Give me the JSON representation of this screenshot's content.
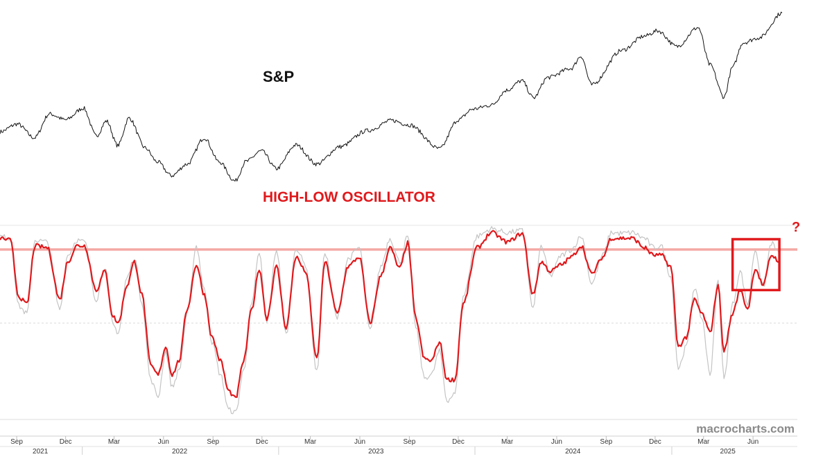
{
  "chart_data": {
    "type": "line",
    "watermark": "macrocharts.com",
    "colors": {
      "price": "#111111",
      "oscillator": "#e0191c",
      "oscillator_raw": "#c4c4c4",
      "threshold": "#f4a8a4",
      "highlight_box": "#e0191c"
    },
    "x_axis": {
      "range": [
        "2021-08-01",
        "2025-07-25"
      ],
      "month_ticks": [
        {
          "date": "2021-09-01",
          "label": "Sep"
        },
        {
          "date": "2021-12-01",
          "label": "Dec"
        },
        {
          "date": "2022-03-01",
          "label": "Mar"
        },
        {
          "date": "2022-06-01",
          "label": "Jun"
        },
        {
          "date": "2022-09-01",
          "label": "Sep"
        },
        {
          "date": "2022-12-01",
          "label": "Dec"
        },
        {
          "date": "2023-03-01",
          "label": "Mar"
        },
        {
          "date": "2023-06-01",
          "label": "Jun"
        },
        {
          "date": "2023-09-01",
          "label": "Sep"
        },
        {
          "date": "2023-12-01",
          "label": "Dec"
        },
        {
          "date": "2024-03-01",
          "label": "Mar"
        },
        {
          "date": "2024-06-01",
          "label": "Jun"
        },
        {
          "date": "2024-09-01",
          "label": "Sep"
        },
        {
          "date": "2024-12-01",
          "label": "Dec"
        },
        {
          "date": "2025-03-01",
          "label": "Mar"
        },
        {
          "date": "2025-06-01",
          "label": "Jun"
        }
      ],
      "year_ticks": [
        {
          "date": "2021-10-15",
          "label": "2021"
        },
        {
          "date": "2022-07-01",
          "label": "2022"
        },
        {
          "date": "2023-07-01",
          "label": "2023"
        },
        {
          "date": "2024-07-01",
          "label": "2024"
        },
        {
          "date": "2025-04-15",
          "label": "2025"
        }
      ]
    },
    "panels": [
      {
        "id": "sp",
        "label": "S&P",
        "y_range": [
          3450,
          6350
        ],
        "series": [
          {
            "name": "S&P",
            "x": [
              "2021-08-01",
              "2021-09-02",
              "2021-10-04",
              "2021-11-01",
              "2021-12-01",
              "2022-01-03",
              "2022-01-27",
              "2022-02-15",
              "2022-03-08",
              "2022-03-29",
              "2022-04-28",
              "2022-05-20",
              "2022-06-16",
              "2022-07-15",
              "2022-08-16",
              "2022-09-12",
              "2022-10-12",
              "2022-11-01",
              "2022-11-30",
              "2022-12-28",
              "2023-02-02",
              "2023-03-13",
              "2023-04-25",
              "2023-06-15",
              "2023-07-31",
              "2023-09-01",
              "2023-10-27",
              "2023-12-01",
              "2023-12-28",
              "2024-01-31",
              "2024-02-29",
              "2024-03-28",
              "2024-04-19",
              "2024-05-15",
              "2024-06-28",
              "2024-07-16",
              "2024-08-05",
              "2024-09-30",
              "2024-11-11",
              "2024-12-06",
              "2025-01-10",
              "2025-02-19",
              "2025-03-13",
              "2025-04-08",
              "2025-04-24",
              "2025-05-13",
              "2025-06-13",
              "2025-07-25"
            ],
            "y": [
              4400,
              4530,
              4300,
              4700,
              4600,
              4796,
              4330,
              4580,
              4170,
              4630,
              4130,
              3900,
              3666,
              3860,
              4300,
              3900,
              3577,
              3900,
              4080,
              3783,
              4180,
              3860,
              4150,
              4420,
              4590,
              4515,
              4117,
              4600,
              4780,
              4845,
              5096,
              5254,
              4967,
              5308,
              5460,
              5667,
              5186,
              5762,
              6001,
              6090,
              5827,
              6144,
              5520,
              4982,
              5480,
              5890,
              5976,
              6390
            ]
          }
        ]
      },
      {
        "id": "oscillator",
        "label": "HIGH-LOW OSCILLATOR",
        "annotation": "?",
        "y_range": [
          -1.0,
          1.0
        ],
        "threshold": 0.78,
        "midline": 0,
        "highlight": {
          "x": [
            "2025-04-24",
            "2025-07-20"
          ],
          "y": [
            0.35,
            0.89
          ]
        },
        "series": [
          {
            "name": "Oscillator (smoothed)",
            "x": [
              "2021-08-01",
              "2021-08-20",
              "2021-09-05",
              "2021-09-20",
              "2021-10-05",
              "2021-10-28",
              "2021-11-20",
              "2021-12-05",
              "2021-12-22",
              "2022-01-05",
              "2022-01-27",
              "2022-02-12",
              "2022-02-27",
              "2022-03-09",
              "2022-03-25",
              "2022-04-08",
              "2022-04-22",
              "2022-05-08",
              "2022-05-22",
              "2022-06-05",
              "2022-06-17",
              "2022-06-30",
              "2022-07-15",
              "2022-08-01",
              "2022-08-16",
              "2022-08-30",
              "2022-09-15",
              "2022-09-30",
              "2022-10-13",
              "2022-10-28",
              "2022-11-12",
              "2022-11-26",
              "2022-12-10",
              "2022-12-28",
              "2023-01-15",
              "2023-02-02",
              "2023-02-20",
              "2023-03-13",
              "2023-03-28",
              "2023-04-20",
              "2023-05-10",
              "2023-05-31",
              "2023-06-20",
              "2023-07-10",
              "2023-07-27",
              "2023-08-14",
              "2023-08-29",
              "2023-09-13",
              "2023-09-29",
              "2023-10-12",
              "2023-10-27",
              "2023-11-10",
              "2023-11-25",
              "2023-12-10",
              "2024-01-05",
              "2024-02-01",
              "2024-03-01",
              "2024-03-29",
              "2024-04-18",
              "2024-05-03",
              "2024-05-20",
              "2024-06-10",
              "2024-06-28",
              "2024-07-17",
              "2024-08-05",
              "2024-08-26",
              "2024-09-10",
              "2024-09-30",
              "2024-10-20",
              "2024-11-11",
              "2024-11-28",
              "2024-12-12",
              "2024-12-30",
              "2025-01-13",
              "2025-01-28",
              "2025-02-12",
              "2025-02-26",
              "2025-03-13",
              "2025-03-28",
              "2025-04-08",
              "2025-04-24",
              "2025-05-08",
              "2025-05-22",
              "2025-06-05",
              "2025-06-20",
              "2025-07-05",
              "2025-07-20"
            ],
            "values": [
              0.9,
              0.88,
              0.28,
              0.2,
              0.82,
              0.8,
              0.25,
              0.65,
              0.82,
              0.82,
              0.35,
              0.55,
              0.07,
              0.0,
              0.4,
              0.65,
              0.3,
              -0.45,
              -0.55,
              -0.25,
              -0.55,
              -0.4,
              0.15,
              0.62,
              0.3,
              -0.15,
              -0.4,
              -0.72,
              -0.8,
              -0.4,
              0.15,
              0.58,
              0.05,
              0.6,
              -0.05,
              0.7,
              0.55,
              -0.38,
              0.65,
              0.1,
              0.6,
              0.7,
              0.0,
              0.5,
              0.8,
              0.58,
              0.85,
              0.05,
              -0.38,
              -0.4,
              -0.2,
              -0.6,
              -0.6,
              0.2,
              0.8,
              0.96,
              0.86,
              0.95,
              0.3,
              0.65,
              0.55,
              0.62,
              0.7,
              0.82,
              0.52,
              0.7,
              0.9,
              0.9,
              0.9,
              0.8,
              0.72,
              0.72,
              0.6,
              -0.25,
              -0.15,
              0.25,
              0.1,
              -0.1,
              0.4,
              -0.3,
              0.1,
              0.35,
              0.15,
              0.58,
              0.4,
              0.72,
              0.66
            ]
          },
          {
            "name": "Oscillator (raw)",
            "x": [
              "2021-08-01",
              "2021-08-20",
              "2021-09-05",
              "2021-09-20",
              "2021-10-05",
              "2021-10-28",
              "2021-11-20",
              "2021-12-05",
              "2021-12-22",
              "2022-01-05",
              "2022-01-27",
              "2022-02-12",
              "2022-02-27",
              "2022-03-09",
              "2022-03-25",
              "2022-04-08",
              "2022-04-22",
              "2022-05-08",
              "2022-05-22",
              "2022-06-05",
              "2022-06-17",
              "2022-06-30",
              "2022-07-15",
              "2022-08-01",
              "2022-08-16",
              "2022-08-30",
              "2022-09-15",
              "2022-09-30",
              "2022-10-13",
              "2022-10-28",
              "2022-11-12",
              "2022-11-26",
              "2022-12-10",
              "2022-12-28",
              "2023-01-15",
              "2023-02-02",
              "2023-02-20",
              "2023-03-13",
              "2023-03-28",
              "2023-04-20",
              "2023-05-10",
              "2023-05-31",
              "2023-06-20",
              "2023-07-10",
              "2023-07-27",
              "2023-08-14",
              "2023-08-29",
              "2023-09-13",
              "2023-09-29",
              "2023-10-12",
              "2023-10-27",
              "2023-11-10",
              "2023-11-25",
              "2023-12-10",
              "2024-01-05",
              "2024-02-01",
              "2024-03-01",
              "2024-03-29",
              "2024-04-18",
              "2024-05-03",
              "2024-05-20",
              "2024-06-10",
              "2024-06-28",
              "2024-07-17",
              "2024-08-05",
              "2024-08-26",
              "2024-09-10",
              "2024-09-30",
              "2024-10-20",
              "2024-11-11",
              "2024-11-28",
              "2024-12-12",
              "2024-12-30",
              "2025-01-13",
              "2025-01-28",
              "2025-02-12",
              "2025-02-26",
              "2025-03-13",
              "2025-03-28",
              "2025-04-08",
              "2025-04-24",
              "2025-05-08",
              "2025-05-22",
              "2025-06-05",
              "2025-06-20",
              "2025-07-05",
              "2025-07-20"
            ],
            "values": [
              0.92,
              0.9,
              0.18,
              0.1,
              0.88,
              0.86,
              0.15,
              0.72,
              0.88,
              0.86,
              0.25,
              0.6,
              -0.02,
              -0.1,
              0.48,
              0.7,
              0.22,
              -0.6,
              -0.78,
              -0.3,
              -0.68,
              -0.5,
              0.1,
              0.82,
              0.35,
              -0.2,
              -0.55,
              -0.92,
              -0.95,
              -0.5,
              0.2,
              0.75,
              0.0,
              0.78,
              -0.12,
              0.8,
              0.62,
              -0.52,
              0.75,
              0.05,
              0.68,
              0.8,
              -0.08,
              0.6,
              0.9,
              0.65,
              0.92,
              -0.05,
              -0.58,
              -0.55,
              -0.3,
              -0.82,
              -0.75,
              0.28,
              0.92,
              1.0,
              0.96,
              0.98,
              0.15,
              0.82,
              0.5,
              0.72,
              0.78,
              0.92,
              0.42,
              0.72,
              0.96,
              0.95,
              0.96,
              0.9,
              0.8,
              0.82,
              0.5,
              -0.48,
              -0.25,
              0.38,
              0.05,
              -0.55,
              0.45,
              -0.6,
              0.2,
              0.55,
              0.2,
              0.78,
              0.38,
              0.85,
              0.73
            ]
          }
        ]
      }
    ]
  }
}
